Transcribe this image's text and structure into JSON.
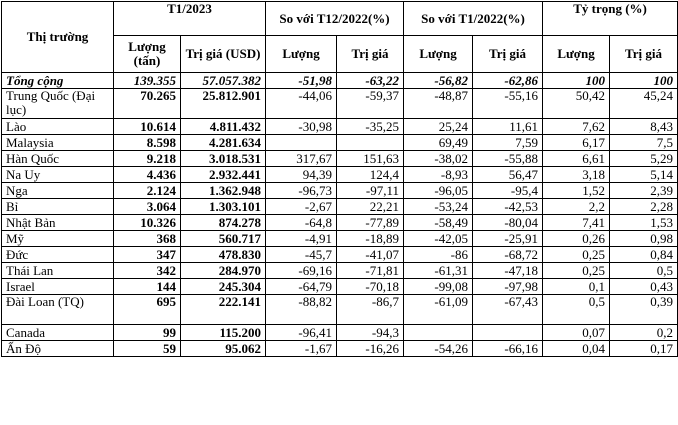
{
  "headers": {
    "market": "Thị trường",
    "period": "T1/2023",
    "vs_prev_month": "So với T12/2022(%)",
    "vs_prev_year": "So với T1/2022(%)",
    "share": "Tỷ trọng (%)",
    "qty": "Lượng (tấn)",
    "value": "Trị giá (USD)",
    "qty_short": "Lượng",
    "value_short": "Trị giá"
  },
  "total": {
    "name": "Tổng cộng",
    "qty": "139.355",
    "value": "57.057.382",
    "mom_qty": "-51,98",
    "mom_value": "-63,22",
    "yoy_qty": "-56,82",
    "yoy_value": "-62,86",
    "share_qty": "100",
    "share_value": "100"
  },
  "rows": [
    {
      "name": "Trung Quốc (Đại lục)",
      "qty": "70.265",
      "value": "25.812.901",
      "mom_qty": "-44,06",
      "mom_value": "-59,37",
      "yoy_qty": "-48,87",
      "yoy_value": "-55,16",
      "share_qty": "50,42",
      "share_value": "45,24"
    },
    {
      "name": "Lào",
      "qty": "10.614",
      "value": "4.811.432",
      "mom_qty": "-30,98",
      "mom_value": "-35,25",
      "yoy_qty": "25,24",
      "yoy_value": "11,61",
      "share_qty": "7,62",
      "share_value": "8,43"
    },
    {
      "name": "Malaysia",
      "qty": "8.598",
      "value": "4.281.634",
      "mom_qty": "",
      "mom_value": "",
      "yoy_qty": "69,49",
      "yoy_value": "7,59",
      "share_qty": "6,17",
      "share_value": "7,5"
    },
    {
      "name": "Hàn Quốc",
      "qty": "9.218",
      "value": "3.018.531",
      "mom_qty": "317,67",
      "mom_value": "151,63",
      "yoy_qty": "-38,02",
      "yoy_value": "-55,88",
      "share_qty": "6,61",
      "share_value": "5,29"
    },
    {
      "name": "Na Uy",
      "qty": "4.436",
      "value": "2.932.441",
      "mom_qty": "94,39",
      "mom_value": "124,4",
      "yoy_qty": "-8,93",
      "yoy_value": "56,47",
      "share_qty": "3,18",
      "share_value": "5,14"
    },
    {
      "name": "Nga",
      "qty": "2.124",
      "value": "1.362.948",
      "mom_qty": "-96,73",
      "mom_value": "-97,11",
      "yoy_qty": "-96,05",
      "yoy_value": "-95,4",
      "share_qty": "1,52",
      "share_value": "2,39"
    },
    {
      "name": "Bỉ",
      "qty": "3.064",
      "value": "1.303.101",
      "mom_qty": "-2,67",
      "mom_value": "22,21",
      "yoy_qty": "-53,24",
      "yoy_value": "-42,53",
      "share_qty": "2,2",
      "share_value": "2,28"
    },
    {
      "name": "Nhật Bản",
      "qty": "10.326",
      "value": "874.278",
      "mom_qty": "-64,8",
      "mom_value": "-77,89",
      "yoy_qty": "-58,49",
      "yoy_value": "-80,04",
      "share_qty": "7,41",
      "share_value": "1,53"
    },
    {
      "name": "Mỹ",
      "qty": "368",
      "value": "560.717",
      "mom_qty": "-4,91",
      "mom_value": "-18,89",
      "yoy_qty": "-42,05",
      "yoy_value": "-25,91",
      "share_qty": "0,26",
      "share_value": "0,98"
    },
    {
      "name": "Đức",
      "qty": "347",
      "value": "478.830",
      "mom_qty": "-45,7",
      "mom_value": "-41,07",
      "yoy_qty": "-86",
      "yoy_value": "-68,72",
      "share_qty": "0,25",
      "share_value": "0,84"
    },
    {
      "name": "Thái Lan",
      "qty": "342",
      "value": "284.970",
      "mom_qty": "-69,16",
      "mom_value": "-71,81",
      "yoy_qty": "-61,31",
      "yoy_value": "-47,18",
      "share_qty": "0,25",
      "share_value": "0,5"
    },
    {
      "name": "Israel",
      "qty": "144",
      "value": "245.304",
      "mom_qty": "-64,79",
      "mom_value": "-70,18",
      "yoy_qty": "-99,08",
      "yoy_value": "-97,98",
      "share_qty": "0,1",
      "share_value": "0,43"
    },
    {
      "name": "Đài Loan (TQ)",
      "qty": "695",
      "value": "222.141",
      "mom_qty": "-88,82",
      "mom_value": "-86,7",
      "yoy_qty": "-61,09",
      "yoy_value": "-67,43",
      "share_qty": "0,5",
      "share_value": "0,39"
    },
    {
      "name": "Canada",
      "qty": "99",
      "value": "115.200",
      "mom_qty": "-96,41",
      "mom_value": "-94,3",
      "yoy_qty": "",
      "yoy_value": "",
      "share_qty": "0,07",
      "share_value": "0,2"
    },
    {
      "name": "Ấn Độ",
      "qty": "59",
      "value": "95.062",
      "mom_qty": "-1,67",
      "mom_value": "-16,26",
      "yoy_qty": "-54,26",
      "yoy_value": "-66,16",
      "share_qty": "0,04",
      "share_value": "0,17"
    }
  ]
}
